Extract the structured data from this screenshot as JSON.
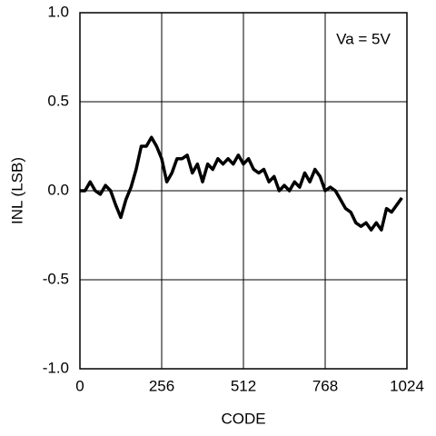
{
  "chart_data": {
    "type": "line",
    "annotation": "Va = 5V",
    "xlabel": "CODE",
    "ylabel": "INL (LSB)",
    "xlim": [
      0,
      1024
    ],
    "xticks": [
      0,
      256,
      512,
      768,
      1024
    ],
    "ylim": [
      -1,
      1
    ],
    "yticks": [
      {
        "value": -1,
        "label": "-1.0"
      },
      -0.5,
      {
        "value": 0,
        "label": "0.0"
      },
      0.5,
      {
        "value": 1,
        "label": "1.0"
      }
    ],
    "grid": true,
    "x": [
      0,
      16,
      32,
      48,
      64,
      80,
      96,
      112,
      128,
      144,
      160,
      176,
      192,
      208,
      224,
      240,
      256,
      272,
      288,
      304,
      320,
      336,
      352,
      368,
      384,
      400,
      416,
      432,
      448,
      464,
      480,
      496,
      512,
      528,
      544,
      560,
      576,
      592,
      608,
      624,
      640,
      656,
      672,
      688,
      704,
      720,
      736,
      752,
      768,
      784,
      800,
      816,
      832,
      848,
      864,
      880,
      896,
      912,
      928,
      944,
      960,
      976,
      992,
      1008
    ],
    "series": [
      {
        "name": "INL",
        "color": "#000000",
        "values": [
          0.0,
          0.0,
          0.05,
          0.0,
          -0.02,
          0.03,
          0.0,
          -0.08,
          -0.15,
          -0.05,
          0.02,
          0.12,
          0.25,
          0.25,
          0.3,
          0.25,
          0.18,
          0.05,
          0.1,
          0.18,
          0.18,
          0.2,
          0.1,
          0.15,
          0.05,
          0.15,
          0.12,
          0.18,
          0.15,
          0.18,
          0.15,
          0.2,
          0.15,
          0.18,
          0.12,
          0.1,
          0.12,
          0.05,
          0.08,
          0.0,
          0.03,
          0.0,
          0.05,
          0.02,
          0.1,
          0.05,
          0.12,
          0.08,
          0.0,
          0.02,
          0.0,
          -0.05,
          -0.1,
          -0.12,
          -0.18,
          -0.2,
          -0.18,
          -0.22,
          -0.18,
          -0.22,
          -0.1,
          -0.12,
          -0.08,
          -0.04
        ]
      }
    ]
  }
}
